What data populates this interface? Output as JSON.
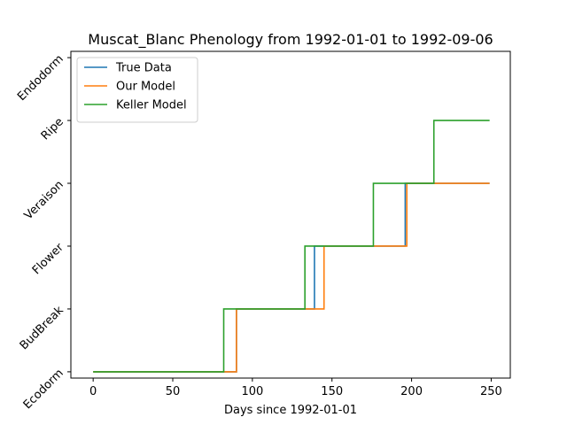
{
  "chart_data": {
    "type": "line",
    "title": "Muscat_Blanc Phenology from 1992-01-01 to 1992-09-06",
    "xlabel": "Days since 1992-01-01",
    "ylabel": "",
    "xlim": [
      -14,
      262
    ],
    "ylim": [
      -0.1,
      5.1
    ],
    "x_ticks": [
      0,
      50,
      100,
      150,
      200,
      250
    ],
    "y_ticks": [
      0,
      1,
      2,
      3,
      4,
      5
    ],
    "y_tick_labels": [
      "Ecodorm",
      "BudBreak",
      "Flower",
      "Veraison",
      "Ripe",
      "Endodorm"
    ],
    "legend_position": "top-left",
    "grid": false,
    "series": [
      {
        "name": "True Data",
        "color": "#1f77b4",
        "step_days": [
          0,
          90,
          139,
          196,
          249
        ],
        "stage_values": [
          0,
          1,
          2,
          3,
          3
        ]
      },
      {
        "name": "Our Model",
        "color": "#ff7f0e",
        "step_days": [
          0,
          90,
          145,
          197,
          249
        ],
        "stage_values": [
          0,
          1,
          2,
          3,
          3
        ]
      },
      {
        "name": "Keller Model",
        "color": "#2ca02c",
        "step_days": [
          0,
          82,
          133,
          176,
          214,
          249
        ],
        "stage_values": [
          0,
          1,
          2,
          3,
          4,
          4
        ]
      }
    ]
  }
}
